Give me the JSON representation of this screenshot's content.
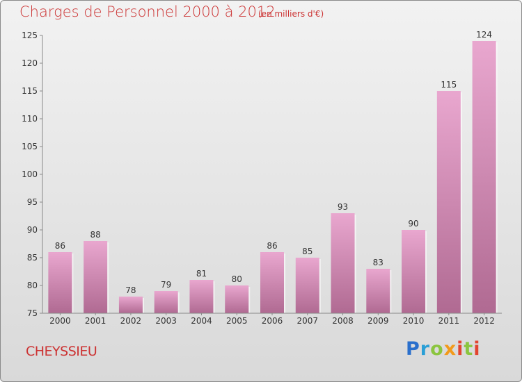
{
  "header": {
    "title": "Charges de Personnel 2000 à 2012",
    "subtitle": "(en milliers d'€)"
  },
  "footer": {
    "commune": "CHEYSSIEU",
    "logo_text": "Proxiti"
  },
  "colors": {
    "title": "#cc3333",
    "bar_light": "#e9a7cf",
    "bar_dark": "#b06a92"
  },
  "chart_data": {
    "type": "bar",
    "categories": [
      "2000",
      "2001",
      "2002",
      "2003",
      "2004",
      "2005",
      "2006",
      "2007",
      "2008",
      "2009",
      "2010",
      "2011",
      "2012"
    ],
    "values": [
      86,
      88,
      78,
      79,
      81,
      80,
      86,
      85,
      93,
      83,
      90,
      115,
      124
    ],
    "data_labels": [
      "86",
      "88",
      "78",
      "79",
      "81",
      "80",
      "86",
      "85",
      "93",
      "83",
      "90",
      "115",
      "124"
    ],
    "ylim": [
      75,
      125
    ],
    "yticks": [
      75,
      80,
      85,
      90,
      95,
      100,
      105,
      110,
      115,
      120,
      125
    ],
    "grid": false,
    "xlabel": "",
    "ylabel": ""
  }
}
